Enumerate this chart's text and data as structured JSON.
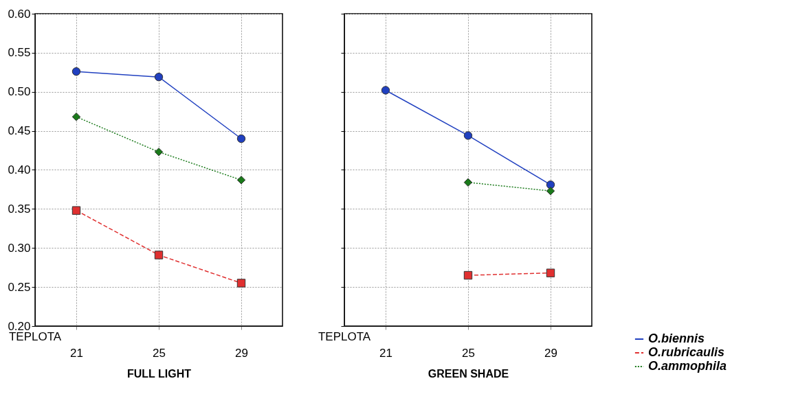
{
  "chart_data": [
    {
      "type": "line",
      "xlabel": "FULL LIGHT",
      "categories": [
        "21",
        "25",
        "29"
      ],
      "ylim": [
        0.2,
        0.6
      ],
      "yticks": [
        {
          "value": 0.2,
          "label": "0.20"
        },
        0.25,
        {
          "value": 0.3,
          "label": "0.30"
        },
        0.35,
        {
          "value": 0.4,
          "label": "0.40"
        },
        0.45,
        {
          "value": 0.5,
          "label": "0.50"
        },
        0.55,
        {
          "value": 0.6,
          "label": "0.60"
        }
      ],
      "grid": true,
      "annotations": [
        "TEPLOTA"
      ],
      "series": [
        {
          "color": "#2040c0",
          "marker": "circle",
          "line_style": "solid",
          "values": [
            0.526,
            0.519,
            0.44
          ]
        },
        {
          "color": "#e03030",
          "marker": "square",
          "line_style": "dashed",
          "values": [
            0.348,
            0.291,
            0.255
          ]
        },
        {
          "color": "#1a7a1a",
          "marker": "diamond",
          "line_style": "dotted",
          "values": [
            0.468,
            0.423,
            0.387
          ]
        }
      ]
    },
    {
      "type": "line",
      "xlabel": "GREEN SHADE",
      "categories": [
        "21",
        "25",
        "29"
      ],
      "ylim": [
        0.2,
        0.6
      ],
      "yticks": [
        {
          "value": 0.2,
          "label": null
        },
        {
          "value": 0.25,
          "label": null
        },
        {
          "value": 0.3,
          "label": null
        },
        {
          "value": 0.35,
          "label": null
        },
        {
          "value": 0.4,
          "label": null
        },
        {
          "value": 0.45,
          "label": null
        },
        {
          "value": 0.5,
          "label": null
        },
        {
          "value": 0.55,
          "label": null
        },
        {
          "value": 0.6,
          "label": null
        }
      ],
      "grid": true,
      "legend": "bottom right",
      "tick_labels": "x",
      "annotations": [
        "TEPLOTA"
      ],
      "series": [
        {
          "name": "O.biennis",
          "color": "#2040c0",
          "marker": "circle",
          "line_style": "solid",
          "values": [
            0.502,
            0.444,
            0.381
          ]
        },
        {
          "name": "O.rubricaulis",
          "color": "#e03030",
          "marker": "square",
          "line_style": "dashed",
          "values": [
            null,
            0.265,
            0.268
          ]
        },
        {
          "name": "O.ammophila",
          "color": "#1a7a1a",
          "marker": "diamond",
          "line_style": "dotted",
          "values": [
            null,
            0.384,
            0.373
          ]
        }
      ]
    }
  ]
}
